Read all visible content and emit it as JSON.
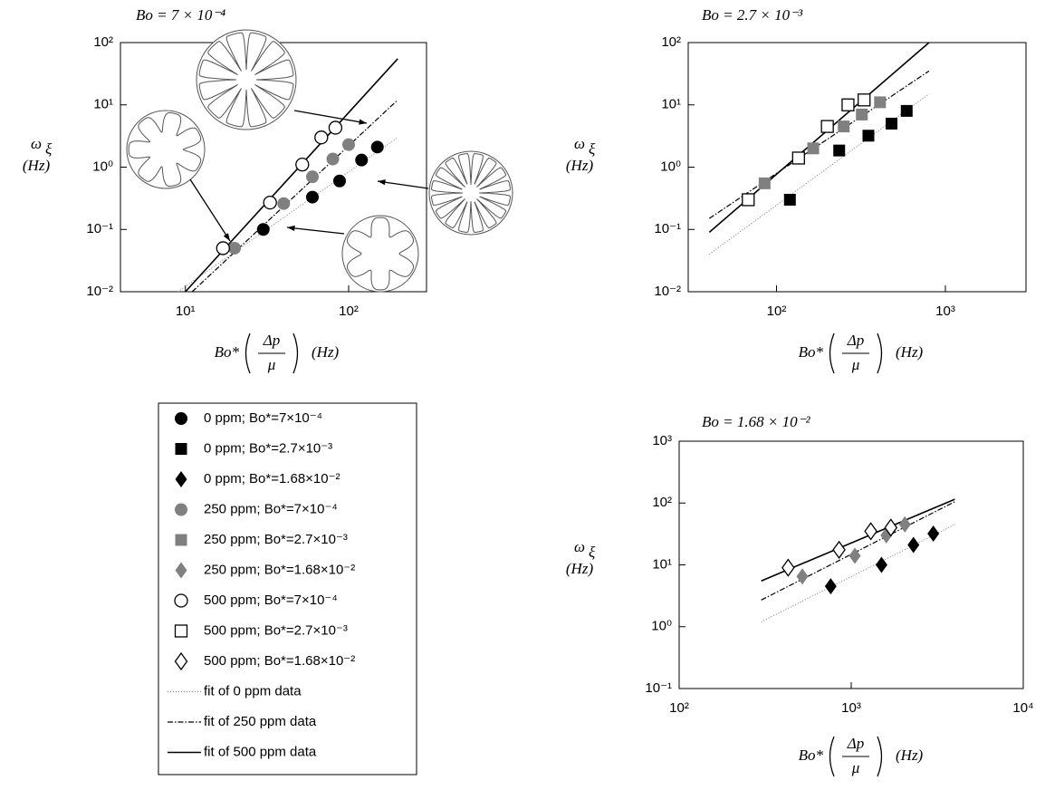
{
  "chart_data": [
    {
      "type": "scatter",
      "title": "Bo = 7 × 10⁻⁴",
      "xscale": "log",
      "yscale": "log",
      "xlim": [
        4,
        300
      ],
      "ylim": [
        0.01,
        100
      ],
      "xticks": [
        {
          "value": 10,
          "label": "10¹"
        },
        {
          "value": 100,
          "label": "10²"
        }
      ],
      "yticks": [
        {
          "value": 0.01,
          "label": "10⁻²"
        },
        {
          "value": 0.1,
          "label": "10⁻¹"
        },
        {
          "value": 1,
          "label": "10⁰"
        },
        {
          "value": 10,
          "label": "10¹"
        },
        {
          "value": 100,
          "label": "10²"
        }
      ],
      "xlabel": {
        "base": "Bo*",
        "numerator": "Δp",
        "denominator": "μ",
        "unit": "(Hz)"
      },
      "ylabel": {
        "symbol": "ω",
        "subscript": "ξ",
        "unit": "(Hz)"
      },
      "series": [
        {
          "name": "0 ppm; Bo*=7×10⁻⁴",
          "marker": "circle",
          "color": "#000000",
          "x": [
            30,
            60,
            88,
            120,
            150
          ],
          "values": [
            0.1,
            0.33,
            0.6,
            1.3,
            2.1
          ]
        },
        {
          "name": "250 ppm; Bo*=7×10⁻⁴",
          "marker": "circle",
          "color": "#808080",
          "x": [
            20,
            40,
            60,
            80,
            100
          ],
          "values": [
            0.05,
            0.26,
            0.7,
            1.35,
            2.3
          ]
        },
        {
          "name": "500 ppm; Bo*=7×10⁻⁴",
          "marker": "circle",
          "color": "#ffffff",
          "x": [
            17,
            33,
            52,
            68,
            83
          ],
          "values": [
            0.05,
            0.27,
            1.1,
            3.0,
            4.3
          ]
        }
      ],
      "fits": [
        {
          "style": "dotted",
          "x": [
            9,
            200
          ],
          "values": [
            0.01,
            3
          ]
        },
        {
          "style": "dashdot",
          "x": [
            11,
            200
          ],
          "values": [
            0.01,
            12
          ]
        },
        {
          "style": "solid",
          "x": [
            10,
            200
          ],
          "values": [
            0.01,
            55
          ]
        }
      ]
    },
    {
      "type": "scatter",
      "title": "Bo = 2.7 × 10⁻³",
      "xscale": "log",
      "yscale": "log",
      "xlim": [
        30,
        3000
      ],
      "ylim": [
        0.01,
        100
      ],
      "xticks": [
        {
          "value": 100,
          "label": "10²"
        },
        {
          "value": 1000,
          "label": "10³"
        }
      ],
      "yticks": [
        {
          "value": 0.01,
          "label": "10⁻²"
        },
        {
          "value": 0.1,
          "label": "10⁻¹"
        },
        {
          "value": 1,
          "label": "10⁰"
        },
        {
          "value": 10,
          "label": "10¹"
        },
        {
          "value": 100,
          "label": "10²"
        }
      ],
      "xlabel": {
        "base": "Bo*",
        "numerator": "Δp",
        "denominator": "μ",
        "unit": "(Hz)"
      },
      "ylabel": {
        "symbol": "ω",
        "subscript": "ξ",
        "unit": "(Hz)"
      },
      "series": [
        {
          "name": "0 ppm; Bo*=2.7×10⁻³",
          "marker": "square",
          "color": "#000000",
          "x": [
            120,
            235,
            350,
            480,
            590
          ],
          "values": [
            0.3,
            1.85,
            3.2,
            5,
            8
          ]
        },
        {
          "name": "250 ppm; Bo*=2.7×10⁻³",
          "marker": "square",
          "color": "#808080",
          "x": [
            85,
            165,
            250,
            320,
            410
          ],
          "values": [
            0.55,
            2,
            4.5,
            7,
            11
          ]
        },
        {
          "name": "500 ppm; Bo*=2.7×10⁻³",
          "marker": "square",
          "color": "#ffffff",
          "x": [
            68,
            135,
            200,
            265,
            330
          ],
          "values": [
            0.3,
            1.4,
            4.5,
            10,
            12
          ]
        }
      ],
      "fits": [
        {
          "style": "dotted",
          "x": [
            40,
            800
          ],
          "values": [
            0.04,
            15
          ]
        },
        {
          "style": "dashdot",
          "x": [
            40,
            800
          ],
          "values": [
            0.15,
            35
          ]
        },
        {
          "style": "solid",
          "x": [
            40,
            800
          ],
          "values": [
            0.09,
            100
          ]
        }
      ]
    },
    {
      "type": "scatter",
      "title": "Bo = 1.68 × 10⁻²",
      "xscale": "log",
      "yscale": "log",
      "xlim": [
        100,
        10000
      ],
      "ylim": [
        0.1,
        1000
      ],
      "xticks": [
        {
          "value": 100,
          "label": "10²"
        },
        {
          "value": 1000,
          "label": "10³"
        },
        {
          "value": 10000,
          "label": "10⁴"
        }
      ],
      "yticks": [
        {
          "value": 0.1,
          "label": "10⁻¹"
        },
        {
          "value": 1,
          "label": "10⁰"
        },
        {
          "value": 10,
          "label": "10¹"
        },
        {
          "value": 100,
          "label": "10²"
        },
        {
          "value": 1000,
          "label": "10³"
        }
      ],
      "xlabel": {
        "base": "Bo*",
        "numerator": "Δp",
        "denominator": "μ",
        "unit": "(Hz)"
      },
      "ylabel": {
        "symbol": "ω",
        "subscript": "ξ",
        "unit": "(Hz)"
      },
      "series": [
        {
          "name": "0 ppm; Bo*=1.68×10⁻²",
          "marker": "diamond",
          "color": "#000000",
          "x": [
            760,
            1500,
            2300,
            3000
          ],
          "values": [
            4.5,
            10,
            21,
            32
          ]
        },
        {
          "name": "250 ppm; Bo*=1.68×10⁻²",
          "marker": "diamond",
          "color": "#808080",
          "x": [
            520,
            1050,
            1600,
            2050
          ],
          "values": [
            6.5,
            14,
            30,
            45
          ]
        },
        {
          "name": "500 ppm; Bo*=1.68×10⁻²",
          "marker": "diamond",
          "color": "#ffffff",
          "x": [
            430,
            850,
            1300,
            1700
          ],
          "values": [
            9,
            17.5,
            35,
            40
          ]
        }
      ],
      "fits": [
        {
          "style": "dotted",
          "x": [
            300,
            4000
          ],
          "values": [
            1.2,
            45
          ]
        },
        {
          "style": "dashdot",
          "x": [
            300,
            4000
          ],
          "values": [
            2.7,
            105
          ]
        },
        {
          "style": "solid",
          "x": [
            300,
            4000
          ],
          "values": [
            5.5,
            115
          ]
        }
      ]
    }
  ],
  "legend": {
    "fits": [
      "fit of 0 ppm data",
      "fit of 250 ppm data",
      "fit of 500 ppm data"
    ]
  }
}
